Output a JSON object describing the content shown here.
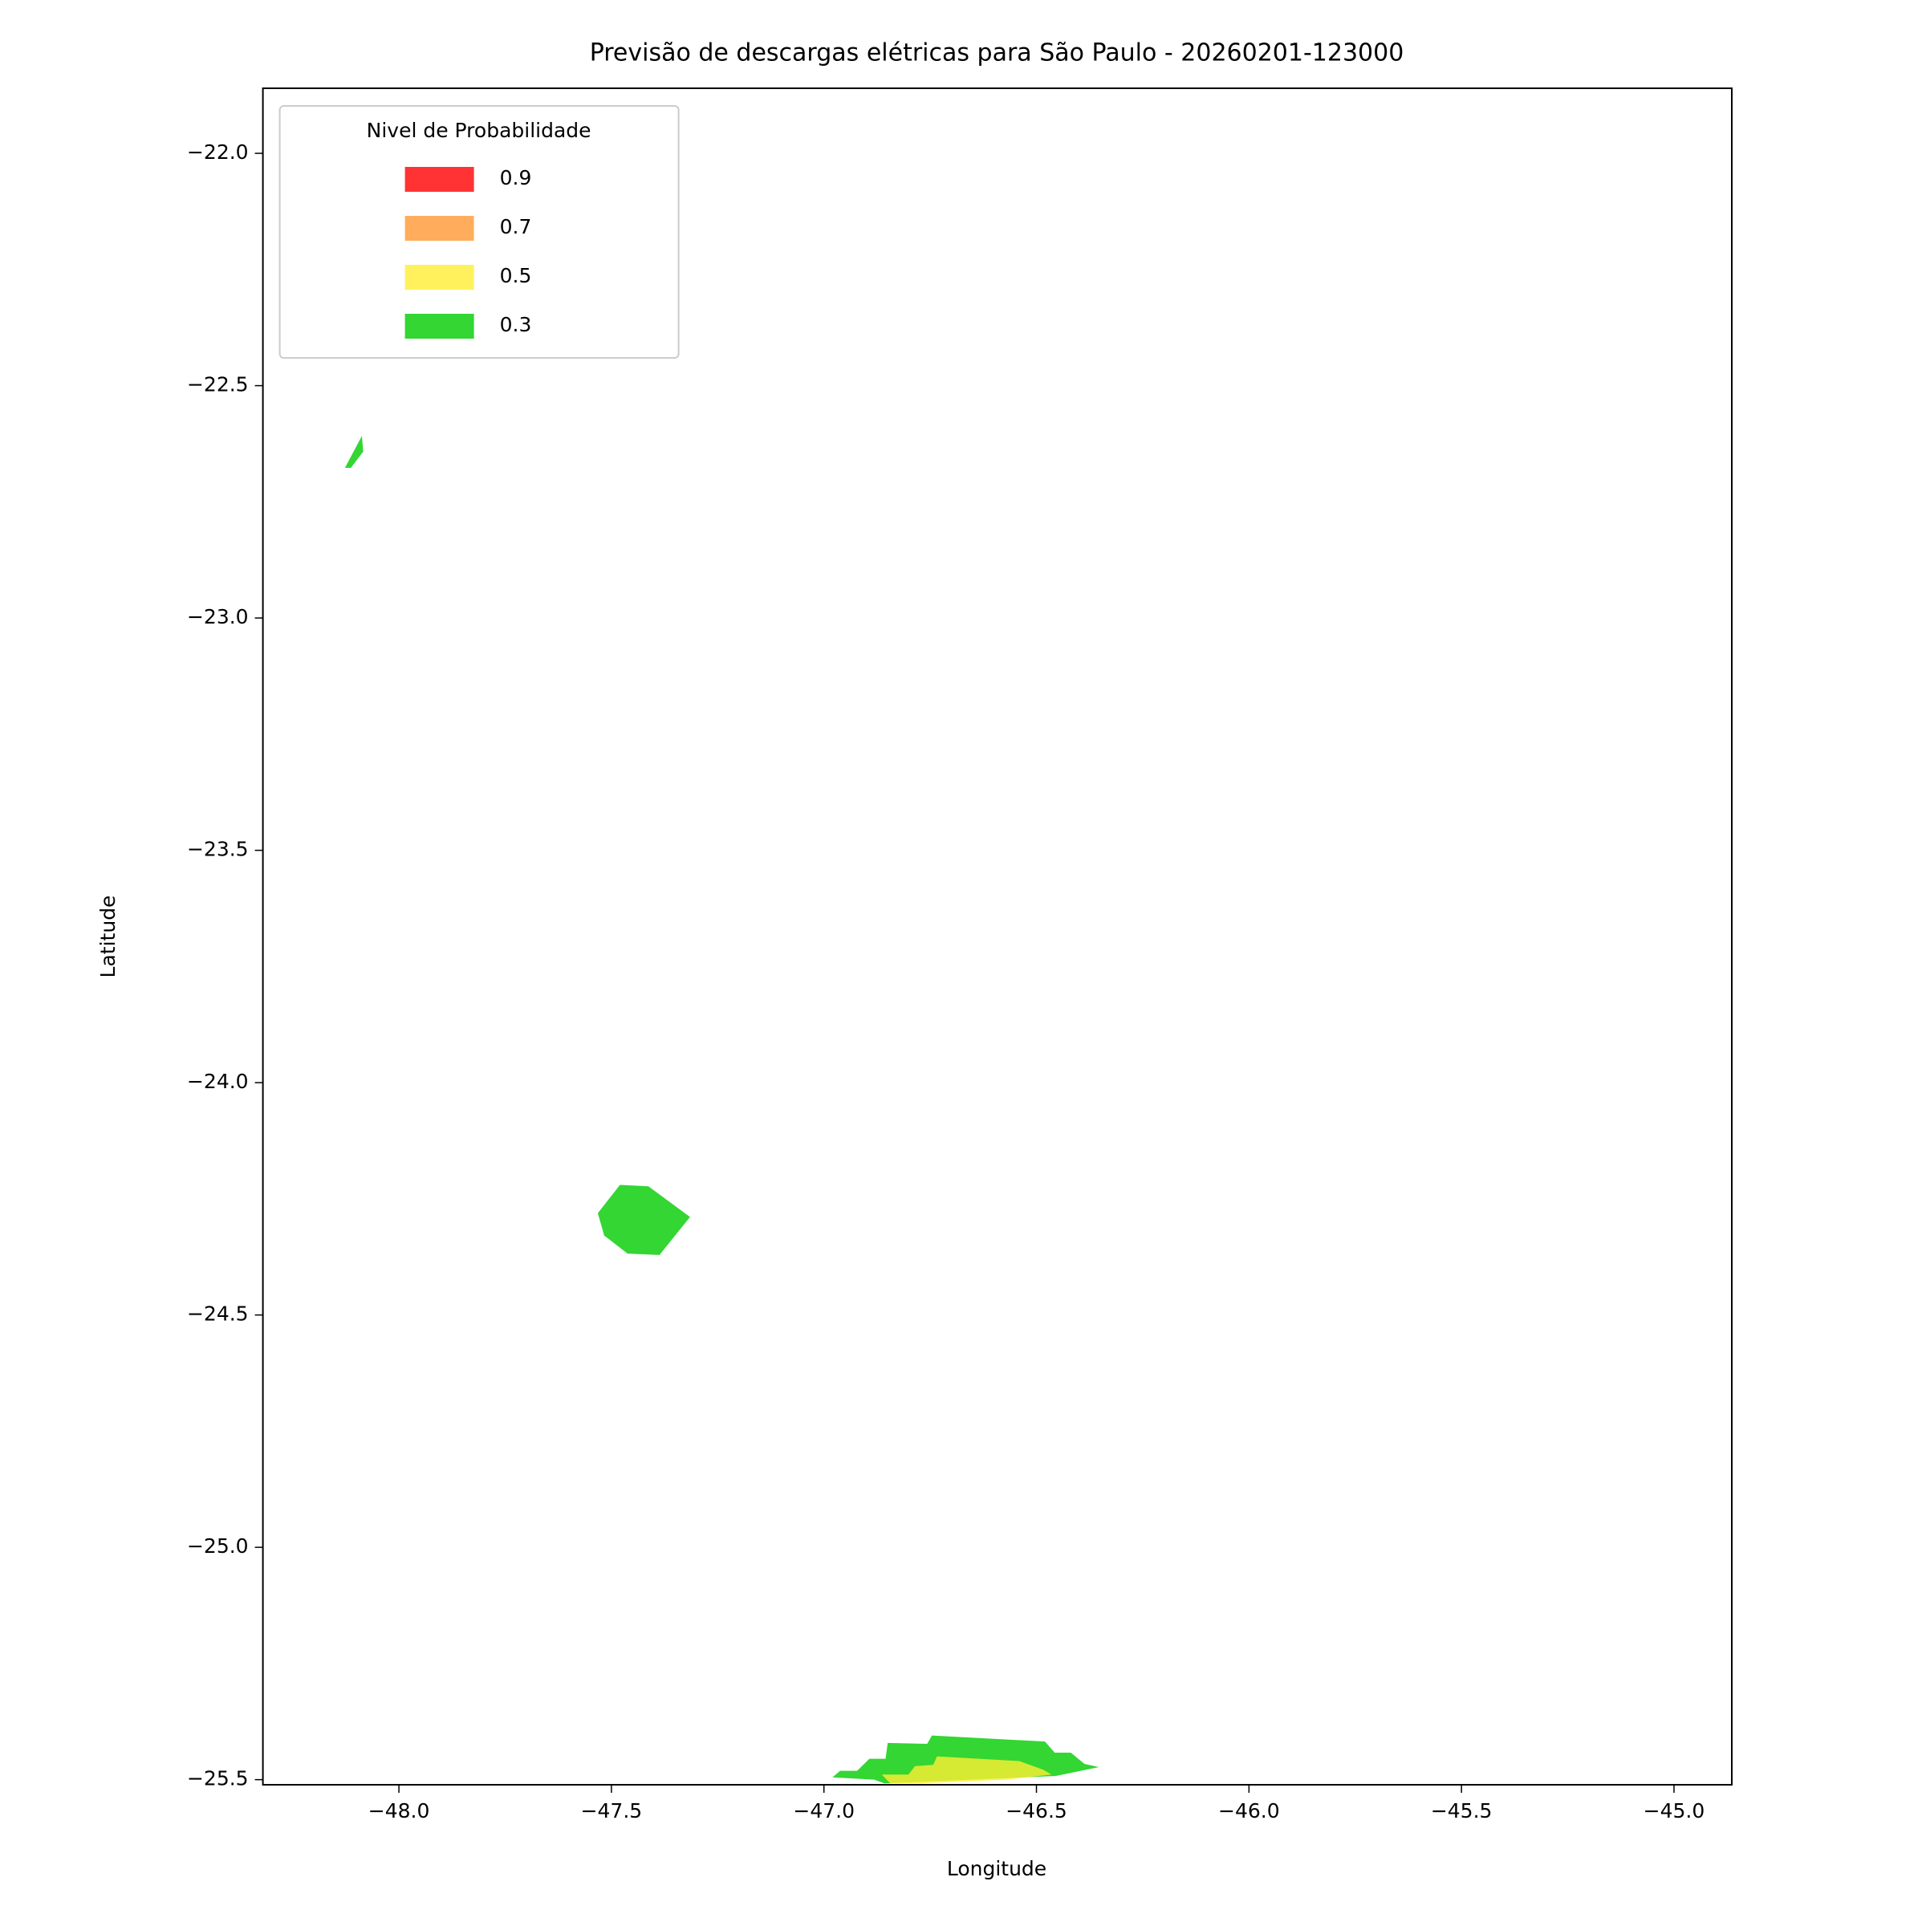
{
  "chart_data": {
    "type": "contour",
    "title": "Previsão de descargas elétricas para São Paulo - 20260201-123000",
    "xlabel": "Longitude",
    "ylabel": "Latitude",
    "xlim": [
      -48.32,
      -44.864
    ],
    "ylim": [
      -25.511,
      -21.86
    ],
    "xticks": [
      {
        "value": -48.0,
        "label": "−48.0"
      },
      {
        "value": -47.5,
        "label": "−47.5"
      },
      {
        "value": -47.0,
        "label": "−47.0"
      },
      {
        "value": -46.5,
        "label": "−46.5"
      },
      {
        "value": -46.0,
        "label": "−46.0"
      },
      {
        "value": -45.5,
        "label": "−45.5"
      },
      {
        "value": -45.0,
        "label": "−45.0"
      }
    ],
    "yticks": [
      {
        "value": -22.0,
        "label": "−22.0"
      },
      {
        "value": -22.5,
        "label": "−22.5"
      },
      {
        "value": -23.0,
        "label": "−23.0"
      },
      {
        "value": -23.5,
        "label": "−23.5"
      },
      {
        "value": -24.0,
        "label": "−24.0"
      },
      {
        "value": -24.5,
        "label": "−24.5"
      },
      {
        "value": -25.0,
        "label": "−25.0"
      },
      {
        "value": -25.5,
        "label": "−25.5"
      }
    ],
    "legend": {
      "title": "Nivel de Probabilidade",
      "position": "upper left",
      "levels": [
        0.9,
        0.7,
        0.5,
        0.3
      ],
      "colors": [
        "#ff0000",
        "#ff9933",
        "#ffee33",
        "#00cc00"
      ]
    },
    "alpha": 0.8,
    "regions": [
      {
        "level": 0.3,
        "lon": [
          -48.127,
          -48.087,
          -48.084,
          -48.113
        ],
        "lat": [
          -22.677,
          -22.608,
          -22.642,
          -22.677
        ]
      },
      {
        "level": 0.3,
        "lon": [
          -47.532,
          -47.48,
          -47.413,
          -47.315,
          -47.387,
          -47.462,
          -47.517
        ],
        "lat": [
          -24.281,
          -24.22,
          -24.223,
          -24.289,
          -24.371,
          -24.368,
          -24.329
        ]
      },
      {
        "level": 0.3,
        "lon": [
          -46.98,
          -46.962,
          -46.922,
          -46.893,
          -46.855,
          -46.85,
          -46.757,
          -46.746,
          -46.48,
          -46.457,
          -46.419,
          -46.387,
          -46.353,
          -46.454,
          -46.858,
          -46.882
        ],
        "lat": [
          -25.495,
          -25.481,
          -25.481,
          -25.455,
          -25.455,
          -25.421,
          -25.423,
          -25.405,
          -25.418,
          -25.442,
          -25.442,
          -25.466,
          -25.473,
          -25.492,
          -25.508,
          -25.5
        ]
      },
      {
        "level": 0.5,
        "lon": [
          -46.864,
          -46.801,
          -46.786,
          -46.743,
          -46.734,
          -46.54,
          -46.483,
          -46.465,
          -46.569,
          -46.772,
          -46.844
        ],
        "lat": [
          -25.489,
          -25.489,
          -25.471,
          -25.468,
          -25.45,
          -25.46,
          -25.479,
          -25.489,
          -25.5,
          -25.508,
          -25.508
        ]
      }
    ]
  }
}
